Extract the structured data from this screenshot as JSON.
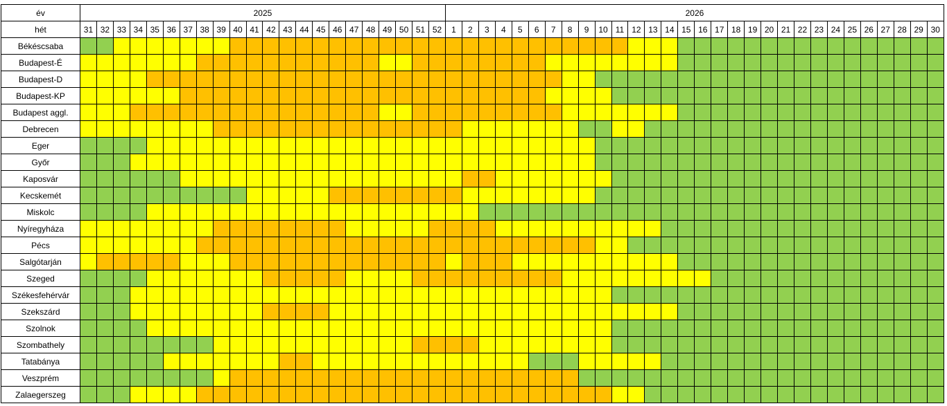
{
  "header": {
    "year_label": "év",
    "week_label": "hét"
  },
  "years": [
    "2025",
    "2026"
  ],
  "weeks": [
    31,
    32,
    33,
    34,
    35,
    36,
    37,
    38,
    39,
    40,
    41,
    42,
    43,
    44,
    45,
    46,
    47,
    48,
    49,
    50,
    51,
    52,
    1,
    2,
    3,
    4,
    5,
    6,
    7,
    8,
    9,
    10,
    11,
    12,
    13,
    14,
    15,
    16,
    17,
    18,
    19,
    20,
    21,
    22,
    23,
    24,
    25,
    26,
    27,
    28,
    29,
    30
  ],
  "colors": {
    "g": "#92d050",
    "y": "#ffff00",
    "o": "#ffc000"
  },
  "legend_note": "g = green, y = yellow, o = orange (cell fill status per week)",
  "rows": [
    {
      "name": "Békéscsaba",
      "cells": "ggyyyyyyyooooooooooooooooooooooooyyyggggggggggggggggg"
    },
    {
      "name": "Budapest-É",
      "cells": "yyyyyyyoooooooooooyyooooooooyyyyyyyyggggggggggggggggg"
    },
    {
      "name": "Budapest-D",
      "cells": "yyyyoooooooooooooooooooooooooyygggggggggggggggggggggg"
    },
    {
      "name": "Budapest-KP",
      "cells": "yyyyyyooooooooooooooooooooooyyyyggggggggggggggggggggg"
    },
    {
      "name": "Budapest aggl.",
      "cells": "yyyoooooooooooooooyyoooooooooyyyyyyyggggggggggggggggg"
    },
    {
      "name": "Debrecen",
      "cells": "yyyyyyyyoooooooooooooooyyyyyyyggyyggggggggggggggggggy"
    },
    {
      "name": "Eger",
      "cells": "ggggyyyyyyyyyyyyyyyyyyyyyyyyyyyggggggggggggggggggggg"
    },
    {
      "name": "Győr",
      "cells": "gggyyyyyyyyyyyyyyyyyyyyyyyyyyyyggggggggggggggggggggg"
    },
    {
      "name": "Kaposvár",
      "cells": "ggggggyyyyyyyyyyyyyyyyyooyyyyyyyggggggggggggggggggggg"
    },
    {
      "name": "Kecskemét",
      "cells": "ggggggggggyyyyyooooooooyyyyyyyygggggggggggggggggggggg"
    },
    {
      "name": "Miskolc",
      "cells": "ggggyyyyyyyyyyyyyyyyyyyyggggggggggggggggggggggggggggg"
    },
    {
      "name": "Nyíregyháza",
      "cells": "yyyyyyyyooooooooyyyyyooooyyyyyyyyyyggggggggggggggggg"
    },
    {
      "name": "Pécs",
      "cells": "yyyyyyyooooooooooooooooooooooooyyggggggggggggggggggggg"
    },
    {
      "name": "Salgótarján",
      "cells": "yoooooyyyoooooooooooooyoooyyyyyyyyyyggggggggggggggggg"
    },
    {
      "name": "Szeged",
      "cells": "ggggyyyyyyyoooooyyyyoooooooooyyyyyyyyygggggggggggggg"
    },
    {
      "name": "Székesfehérvár",
      "cells": "gggyyyyyyyyyyyyyyyyyyyyyyyyyyyyygggggggggggggggggggg"
    },
    {
      "name": "Szekszárd",
      "cells": "gggyyyyyyyyooooyyyyyyyyyyyyyyyyyyyyygggggggggggggggg"
    },
    {
      "name": "Szolnok",
      "cells": "ggggyyyyyyyyyyyyyyyyyyyyyyyyyyyygggggggggggggggggggg"
    },
    {
      "name": "Szombathely",
      "cells": "ggggggggyyyyyyyyyyyyooooyyyyyyyygggggggggggggggggggg"
    },
    {
      "name": "Tatabánya",
      "cells": "gggggyyyyyyyooyyyyyyyyyyyyygggyyyyygggggggggggggggggg"
    },
    {
      "name": "Veszprém",
      "cells": "ggggggggyooooooooooooooooooooogggggggggggggggggggggg"
    },
    {
      "name": "Zalaegerszeg",
      "cells": "gggyyyyoooooooooooooooooooooooooyygggggggggggggggggggg"
    }
  ]
}
